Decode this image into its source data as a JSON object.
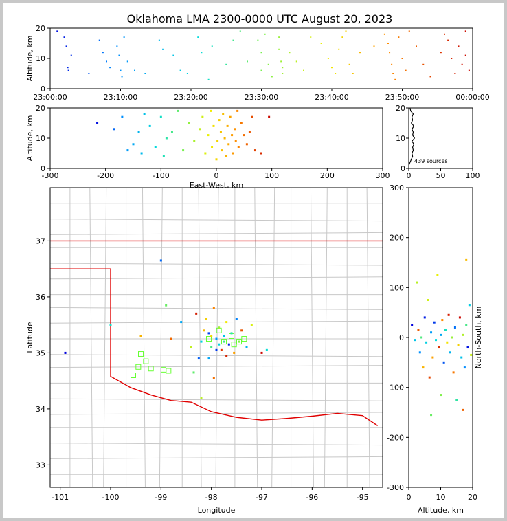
{
  "chart_data": [
    {
      "panel": "time-altitude",
      "type": "scatter",
      "title": "Oklahoma LMA 2300-0000 UTC August 20, 2023",
      "ylabel": "Altitude, km",
      "ylim": [
        0,
        20
      ],
      "yticks": [
        "0",
        "10",
        "20"
      ],
      "xticks": [
        "23:00:00",
        "23:10:00",
        "23:20:00",
        "23:30:00",
        "23:40:00",
        "23:50:00",
        "00:00:00"
      ],
      "xlim_minutes": [
        0,
        60
      ],
      "color_scale": "time, blue to red",
      "points": [
        [
          2,
          17
        ],
        [
          2.3,
          14
        ],
        [
          2.5,
          7
        ],
        [
          2.6,
          6
        ],
        [
          1,
          19
        ],
        [
          3,
          11
        ],
        [
          5.5,
          5
        ],
        [
          7,
          16
        ],
        [
          7.5,
          12
        ],
        [
          8,
          9
        ],
        [
          8.5,
          7
        ],
        [
          9.5,
          14
        ],
        [
          9.8,
          11
        ],
        [
          10,
          6
        ],
        [
          10.2,
          4
        ],
        [
          10.5,
          17
        ],
        [
          11,
          9
        ],
        [
          12,
          6
        ],
        [
          13.5,
          5
        ],
        [
          15.5,
          16
        ],
        [
          16,
          13
        ],
        [
          17.5,
          11
        ],
        [
          18.5,
          6
        ],
        [
          19.5,
          5
        ],
        [
          21,
          17
        ],
        [
          21.5,
          12
        ],
        [
          22.5,
          3
        ],
        [
          23,
          14
        ],
        [
          25,
          8
        ],
        [
          26,
          16
        ],
        [
          27,
          19
        ],
        [
          28,
          9
        ],
        [
          29.5,
          16
        ],
        [
          30,
          12
        ],
        [
          30,
          6
        ],
        [
          30.5,
          18
        ],
        [
          31,
          8
        ],
        [
          31.5,
          4
        ],
        [
          32.5,
          17
        ],
        [
          32.5,
          13
        ],
        [
          32.8,
          9
        ],
        [
          33,
          7
        ],
        [
          33,
          5
        ],
        [
          34,
          12
        ],
        [
          35,
          9
        ],
        [
          36,
          6
        ],
        [
          37,
          17
        ],
        [
          38.5,
          15
        ],
        [
          39.5,
          10
        ],
        [
          40,
          7
        ],
        [
          40.5,
          5
        ],
        [
          41,
          13
        ],
        [
          41.5,
          17
        ],
        [
          42,
          19
        ],
        [
          42.5,
          8
        ],
        [
          43,
          5
        ],
        [
          44,
          12
        ],
        [
          46,
          14
        ],
        [
          47.5,
          18
        ],
        [
          48,
          15
        ],
        [
          48.2,
          12
        ],
        [
          48.5,
          8
        ],
        [
          48.7,
          5
        ],
        [
          49,
          3
        ],
        [
          49.5,
          17
        ],
        [
          50,
          10
        ],
        [
          50.5,
          6
        ],
        [
          51,
          19
        ],
        [
          52,
          14
        ],
        [
          53,
          8
        ],
        [
          54,
          4
        ],
        [
          55.5,
          12
        ],
        [
          56,
          18
        ],
        [
          56.5,
          16
        ],
        [
          57,
          10
        ],
        [
          57.5,
          5
        ],
        [
          58,
          14
        ],
        [
          58.5,
          8
        ],
        [
          59,
          19
        ],
        [
          59,
          11
        ],
        [
          59.5,
          6
        ]
      ]
    },
    {
      "panel": "east-west-altitude",
      "type": "scatter",
      "xlabel": "East-West, km",
      "ylabel": "Altitude, km",
      "xlim": [
        -300,
        300
      ],
      "ylim": [
        0,
        20
      ],
      "xticks": [
        "-300",
        "-200",
        "-100",
        "0",
        "100",
        "200",
        "300"
      ],
      "yticks": [
        "0",
        "10",
        "20"
      ],
      "points": [
        [
          -215,
          15
        ],
        [
          -185,
          13
        ],
        [
          -170,
          17
        ],
        [
          -160,
          6
        ],
        [
          -150,
          8
        ],
        [
          -140,
          12
        ],
        [
          -135,
          5
        ],
        [
          -130,
          18
        ],
        [
          -120,
          14
        ],
        [
          -110,
          7
        ],
        [
          -100,
          17
        ],
        [
          -95,
          4
        ],
        [
          -90,
          10
        ],
        [
          -80,
          12
        ],
        [
          -70,
          19
        ],
        [
          -60,
          6
        ],
        [
          -50,
          15
        ],
        [
          -40,
          9
        ],
        [
          -30,
          13
        ],
        [
          -25,
          17
        ],
        [
          -20,
          5
        ],
        [
          -15,
          11
        ],
        [
          -10,
          19
        ],
        [
          -8,
          7
        ],
        [
          -5,
          14
        ],
        [
          0,
          3
        ],
        [
          2,
          9
        ],
        [
          5,
          16
        ],
        [
          8,
          12
        ],
        [
          10,
          6
        ],
        [
          12,
          18
        ],
        [
          15,
          10
        ],
        [
          18,
          4
        ],
        [
          20,
          14
        ],
        [
          22,
          8
        ],
        [
          25,
          17
        ],
        [
          28,
          11
        ],
        [
          30,
          5
        ],
        [
          33,
          13
        ],
        [
          35,
          9
        ],
        [
          38,
          19
        ],
        [
          40,
          7
        ],
        [
          45,
          15
        ],
        [
          50,
          11
        ],
        [
          55,
          8
        ],
        [
          60,
          12
        ],
        [
          65,
          17
        ],
        [
          70,
          6
        ],
        [
          80,
          5
        ],
        [
          95,
          17
        ]
      ]
    },
    {
      "panel": "altitude-histogram",
      "type": "line",
      "xlim": [
        0,
        100
      ],
      "ylim": [
        0,
        20
      ],
      "xticks": [
        "0",
        "50",
        "100"
      ],
      "yticks": [
        "0",
        "10",
        "20"
      ],
      "annotation": "439 sources",
      "altitude_km": [
        1,
        2,
        3,
        4,
        5,
        6,
        7,
        8,
        9,
        10,
        11,
        12,
        13,
        14,
        15,
        16,
        17,
        18,
        19,
        20
      ],
      "counts": [
        0,
        2,
        4,
        6,
        5,
        7,
        6,
        8,
        5,
        9,
        6,
        7,
        5,
        8,
        4,
        6,
        5,
        7,
        3,
        2
      ]
    },
    {
      "panel": "plan-view-map",
      "type": "scatter",
      "xlabel": "Longitude",
      "ylabel": "Latitude",
      "xlim": [
        -101.2,
        -94.6
      ],
      "ylim": [
        32.6,
        37.95
      ],
      "xticks": [
        "-101",
        "-100",
        "-99",
        "-98",
        "-97",
        "-96",
        "-95"
      ],
      "yticks": [
        "33",
        "34",
        "35",
        "36",
        "37"
      ],
      "points": [
        [
          -100.9,
          35.0
        ],
        [
          -100.0,
          35.5
        ],
        [
          -99.4,
          35.3
        ],
        [
          -99.0,
          36.65
        ],
        [
          -98.9,
          35.85
        ],
        [
          -98.8,
          35.25
        ],
        [
          -98.6,
          35.55
        ],
        [
          -98.4,
          35.1
        ],
        [
          -98.3,
          35.7
        ],
        [
          -98.2,
          35.2
        ],
        [
          -98.1,
          35.6
        ],
        [
          -98.05,
          35.35
        ],
        [
          -98.0,
          35.1
        ],
        [
          -97.95,
          35.8
        ],
        [
          -97.9,
          35.25
        ],
        [
          -97.85,
          35.45
        ],
        [
          -97.8,
          35.05
        ],
        [
          -97.75,
          35.3
        ],
        [
          -97.7,
          35.55
        ],
        [
          -97.65,
          35.15
        ],
        [
          -97.6,
          35.35
        ],
        [
          -97.55,
          35.0
        ],
        [
          -97.5,
          35.6
        ],
        [
          -97.45,
          35.2
        ],
        [
          -97.4,
          35.4
        ],
        [
          -97.3,
          35.1
        ],
        [
          -97.2,
          35.5
        ],
        [
          -97.0,
          35.0
        ],
        [
          -96.9,
          35.05
        ],
        [
          -98.15,
          35.4
        ],
        [
          -98.25,
          34.9
        ],
        [
          -98.35,
          34.65
        ],
        [
          -97.95,
          34.55
        ],
        [
          -98.05,
          34.9
        ],
        [
          -98.2,
          34.2
        ],
        [
          -97.7,
          34.95
        ],
        [
          -97.85,
          35.15
        ],
        [
          -98.0,
          35.3
        ],
        [
          -97.9,
          35.05
        ],
        [
          -97.75,
          35.2
        ]
      ],
      "stations": [
        [
          -99.4,
          34.98
        ],
        [
          -99.3,
          34.85
        ],
        [
          -99.45,
          34.75
        ],
        [
          -99.2,
          34.72
        ],
        [
          -99.55,
          34.6
        ],
        [
          -98.95,
          34.7
        ],
        [
          -98.85,
          34.68
        ],
        [
          -97.85,
          35.4
        ],
        [
          -97.6,
          35.3
        ],
        [
          -97.45,
          35.2
        ],
        [
          -97.35,
          35.25
        ],
        [
          -97.55,
          35.15
        ],
        [
          -98.05,
          35.25
        ],
        [
          -97.75,
          35.2
        ]
      ]
    },
    {
      "panel": "altitude-north-south",
      "type": "scatter",
      "xlabel": "Altitude, km",
      "ylabel": "North-South, km",
      "xlim": [
        0,
        20
      ],
      "ylim": [
        -300,
        300
      ],
      "xticks": [
        "0",
        "10",
        "20"
      ],
      "yticks": [
        "-300",
        "-200",
        "-100",
        "0",
        "100",
        "200",
        "300"
      ],
      "points": [
        [
          1,
          25
        ],
        [
          2,
          -5
        ],
        [
          2.5,
          110
        ],
        [
          3,
          15
        ],
        [
          3.5,
          -30
        ],
        [
          4,
          0
        ],
        [
          4.5,
          -60
        ],
        [
          5,
          40
        ],
        [
          5.5,
          -10
        ],
        [
          6,
          75
        ],
        [
          6.5,
          -80
        ],
        [
          7,
          10
        ],
        [
          7,
          -155
        ],
        [
          7.5,
          -40
        ],
        [
          8,
          30
        ],
        [
          8.5,
          -5
        ],
        [
          9,
          125
        ],
        [
          9.5,
          -20
        ],
        [
          10,
          5
        ],
        [
          10,
          -115
        ],
        [
          10.5,
          35
        ],
        [
          11,
          -50
        ],
        [
          11.5,
          15
        ],
        [
          12,
          -10
        ],
        [
          12.5,
          45
        ],
        [
          13,
          -30
        ],
        [
          13.5,
          0
        ],
        [
          14,
          -70
        ],
        [
          14.5,
          20
        ],
        [
          15,
          -125
        ],
        [
          15.5,
          -15
        ],
        [
          16,
          40
        ],
        [
          16.5,
          -40
        ],
        [
          17,
          5
        ],
        [
          17,
          -145
        ],
        [
          17.5,
          -60
        ],
        [
          18,
          25
        ],
        [
          18,
          155
        ],
        [
          18.5,
          -20
        ],
        [
          19,
          65
        ],
        [
          19.5,
          -35
        ]
      ]
    }
  ]
}
